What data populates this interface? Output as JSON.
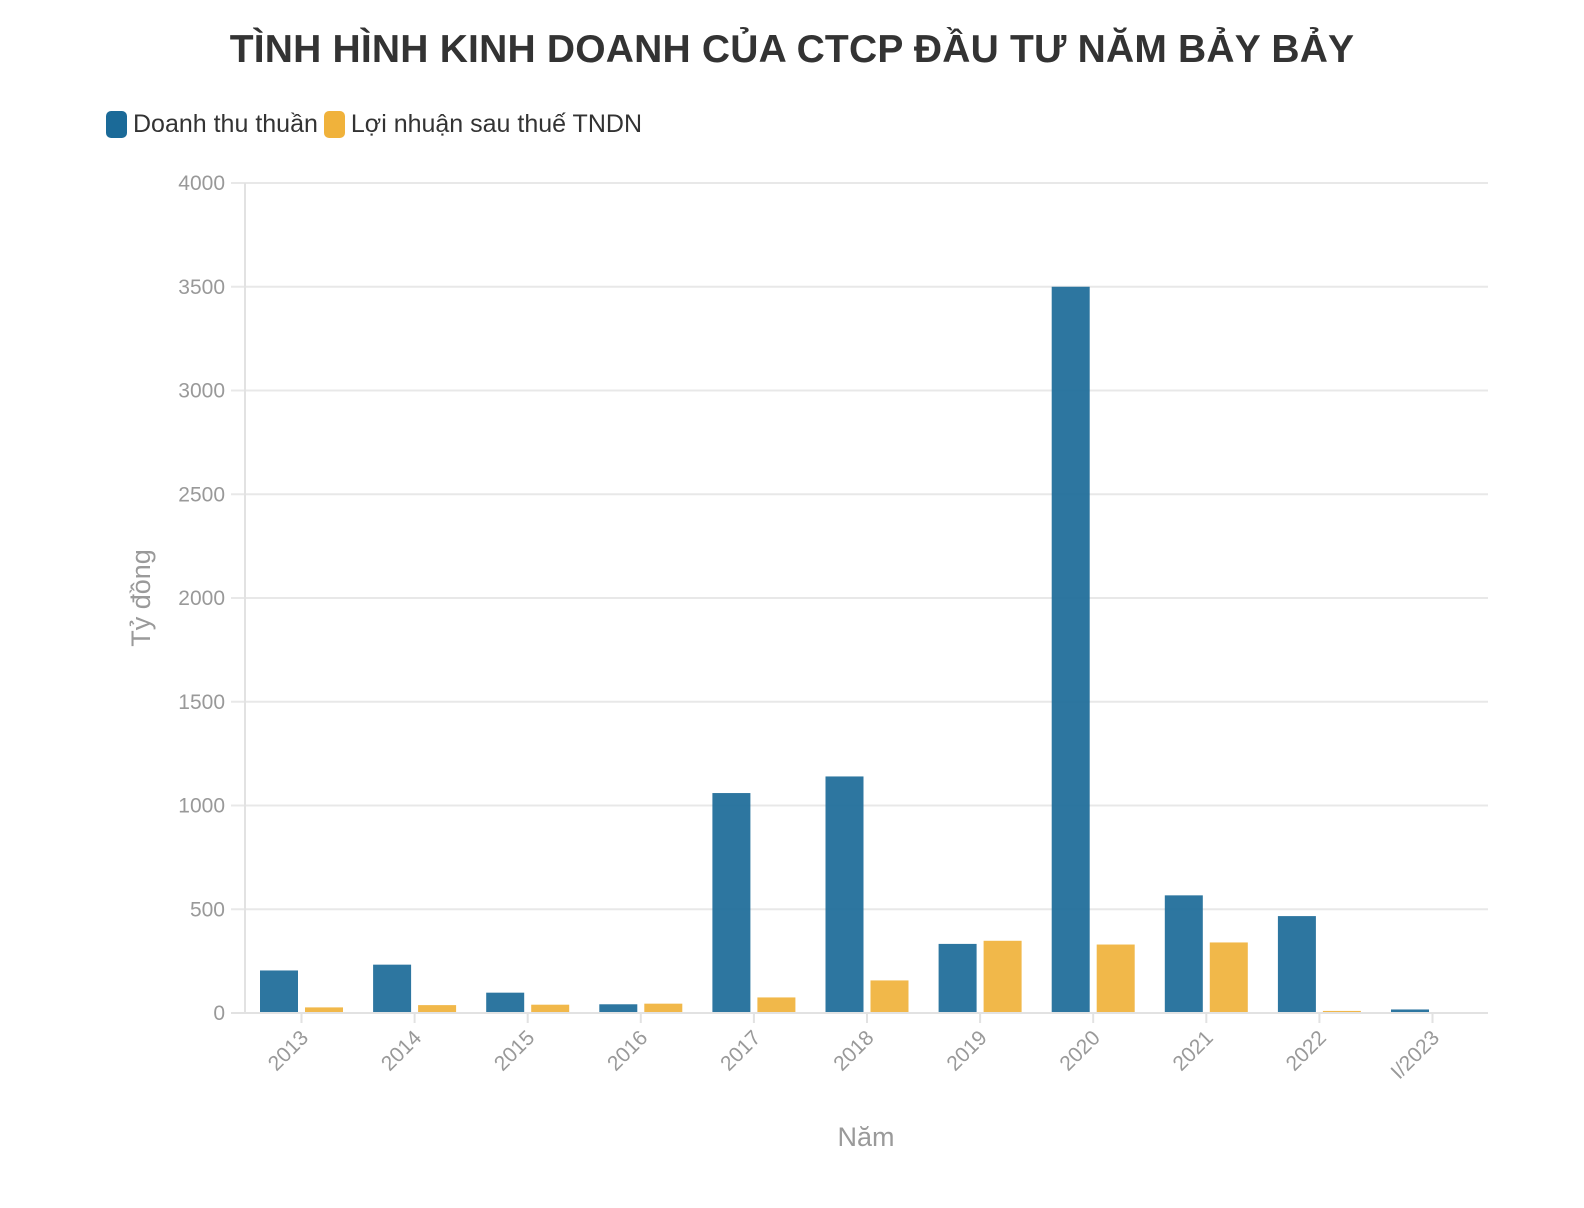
{
  "chart_data": {
    "type": "bar",
    "title": "TÌNH HÌNH KINH DOANH CỦA CTCP ĐẦU TƯ NĂM BẢY BẢY",
    "xlabel": "Năm",
    "ylabel": "Tỷ đồng",
    "categories": [
      "2013",
      "2014",
      "2015",
      "2016",
      "2017",
      "2018",
      "2019",
      "2020",
      "2021",
      "2022",
      "I/2023"
    ],
    "series": [
      {
        "name": "Doanh thu thuần",
        "color": "#1b6a98",
        "values": [
          205,
          233,
          98,
          42,
          1060,
          1140,
          333,
          3500,
          567,
          467,
          17
        ]
      },
      {
        "name": "Lợi nhuận sau thuế TNDN",
        "color": "#f0b23b",
        "values": [
          27,
          38,
          40,
          45,
          75,
          157,
          348,
          330,
          340,
          10,
          0
        ]
      }
    ],
    "ylim": [
      0,
      4000
    ],
    "yticks": [
      "0",
      "500",
      "1000",
      "1500",
      "2000",
      "2500",
      "3000",
      "3500",
      "4000"
    ],
    "grid": true,
    "legend_position": "top-left"
  }
}
